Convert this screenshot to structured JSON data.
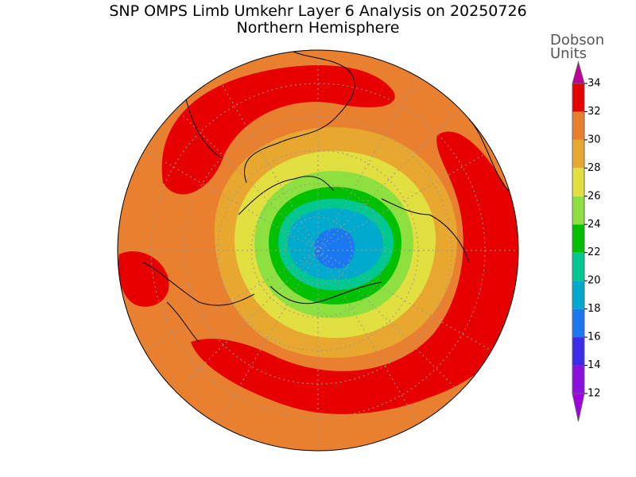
{
  "title": "SNP OMPS Limb Umkehr Layer 6 Analysis on 20250726",
  "subtitle": "Northern Hemisphere",
  "colorbar": {
    "label_lines": [
      "Dobson",
      "Units"
    ],
    "levels": [
      12,
      14,
      16,
      18,
      20,
      22,
      24,
      26,
      28,
      30,
      32,
      34
    ],
    "colors": [
      "#8a10e0",
      "#3c2ae8",
      "#1a78f0",
      "#00aacc",
      "#00c890",
      "#00c000",
      "#8ee040",
      "#e2e040",
      "#e8a830",
      "#e88030",
      "#e60000"
    ],
    "under_color": "#a000e0",
    "over_color": "#c0009a"
  }
}
